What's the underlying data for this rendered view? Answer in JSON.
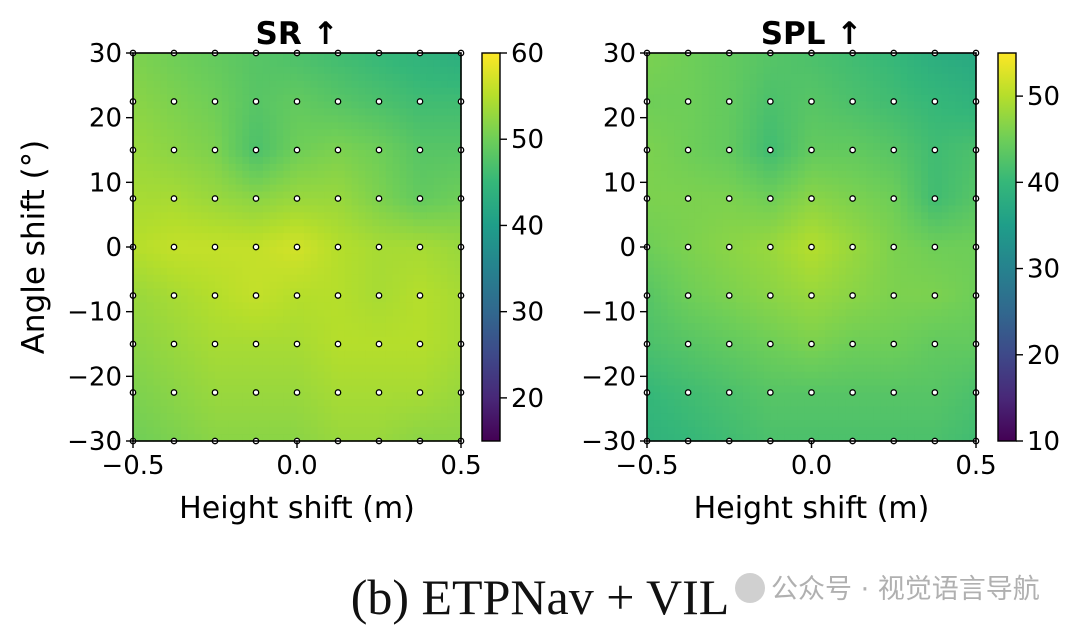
{
  "figure_caption": "(b) ETPNav + VIL",
  "watermark": "公众号 · 视觉语言导航",
  "colors": {
    "viridis": [
      "#440154",
      "#482878",
      "#3e4989",
      "#31688e",
      "#26828e",
      "#1f9e89",
      "#35b779",
      "#6ece58",
      "#b5de2b",
      "#fde725"
    ],
    "marker_fill": "#ffffff",
    "marker_edge": "#000000"
  },
  "chart_data": [
    {
      "type": "heatmap",
      "title": "SR ↑",
      "xlabel": "Height shift (m)",
      "ylabel": "Angle shift (°)",
      "xlim": [
        -0.5,
        0.5
      ],
      "ylim": [
        -30,
        30
      ],
      "x_ticks": [
        -0.5,
        0.0,
        0.5
      ],
      "x_tick_labels": [
        "−0.5",
        "0.0",
        "0.5"
      ],
      "y_ticks": [
        30,
        20,
        10,
        0,
        -10,
        -20,
        -30
      ],
      "y_tick_labels": [
        "30",
        "20",
        "10",
        "0",
        "−10",
        "−20",
        "−30"
      ],
      "colorbar": {
        "vmin": 15,
        "vmax": 60,
        "ticks": [
          60,
          50,
          40,
          30,
          20
        ],
        "tick_labels": [
          "60",
          "50",
          "40",
          "30",
          "20"
        ]
      },
      "x": [
        -0.5,
        -0.375,
        -0.25,
        -0.125,
        0.0,
        0.125,
        0.25,
        0.375,
        0.5
      ],
      "y": [
        30,
        22.5,
        15,
        7.5,
        0,
        -7.5,
        -15,
        -22.5,
        -30
      ],
      "values": [
        [
          51,
          50,
          49,
          48,
          47,
          46,
          45,
          44,
          43
        ],
        [
          52,
          51,
          50,
          48,
          49,
          48,
          47,
          46,
          46
        ],
        [
          53,
          52,
          51,
          47,
          50,
          51,
          50,
          48,
          48
        ],
        [
          54,
          54,
          53,
          52,
          53,
          53,
          51,
          49,
          50
        ],
        [
          55,
          56,
          56,
          56,
          57,
          55,
          54,
          54,
          53
        ],
        [
          53,
          54,
          55,
          56,
          55,
          55,
          54,
          55,
          54
        ],
        [
          52,
          53,
          54,
          54,
          54,
          55,
          55,
          55,
          54
        ],
        [
          51,
          52,
          53,
          53,
          53,
          54,
          54,
          54,
          53
        ],
        [
          50,
          51,
          52,
          52,
          52,
          53,
          53,
          52,
          52
        ]
      ]
    },
    {
      "type": "heatmap",
      "title": "SPL ↑",
      "xlabel": "Height shift (m)",
      "ylabel": "",
      "xlim": [
        -0.5,
        0.5
      ],
      "ylim": [
        -30,
        30
      ],
      "x_ticks": [
        -0.5,
        0.0,
        0.5
      ],
      "x_tick_labels": [
        "−0.5",
        "0.0",
        "0.5"
      ],
      "y_ticks": [
        30,
        20,
        10,
        0,
        -10,
        -20,
        -30
      ],
      "y_tick_labels": [
        "30",
        "20",
        "10",
        "0",
        "−10",
        "−20",
        "−30"
      ],
      "colorbar": {
        "vmin": 10,
        "vmax": 55,
        "ticks": [
          50,
          40,
          30,
          20,
          10
        ],
        "tick_labels": [
          "50",
          "40",
          "30",
          "20",
          "10"
        ]
      },
      "x": [
        -0.5,
        -0.375,
        -0.25,
        -0.125,
        0.0,
        0.125,
        0.25,
        0.375,
        0.5
      ],
      "y": [
        30,
        22.5,
        15,
        7.5,
        0,
        -7.5,
        -15,
        -22.5,
        -30
      ],
      "values": [
        [
          46,
          45,
          44,
          43,
          42,
          41,
          40,
          38,
          37
        ],
        [
          45,
          45,
          44,
          42,
          43,
          42,
          41,
          40,
          39
        ],
        [
          46,
          45,
          44,
          41,
          44,
          44,
          43,
          41,
          42
        ],
        [
          46,
          46,
          46,
          45,
          47,
          46,
          45,
          41,
          43
        ],
        [
          45,
          46,
          47,
          48,
          50,
          48,
          46,
          45,
          45
        ],
        [
          43,
          45,
          46,
          47,
          48,
          47,
          46,
          46,
          45
        ],
        [
          42,
          43,
          44,
          45,
          46,
          45,
          45,
          44,
          44
        ],
        [
          40,
          41,
          42,
          43,
          43,
          43,
          43,
          43,
          42
        ],
        [
          39,
          40,
          41,
          42,
          42,
          42,
          42,
          42,
          41
        ]
      ]
    }
  ]
}
